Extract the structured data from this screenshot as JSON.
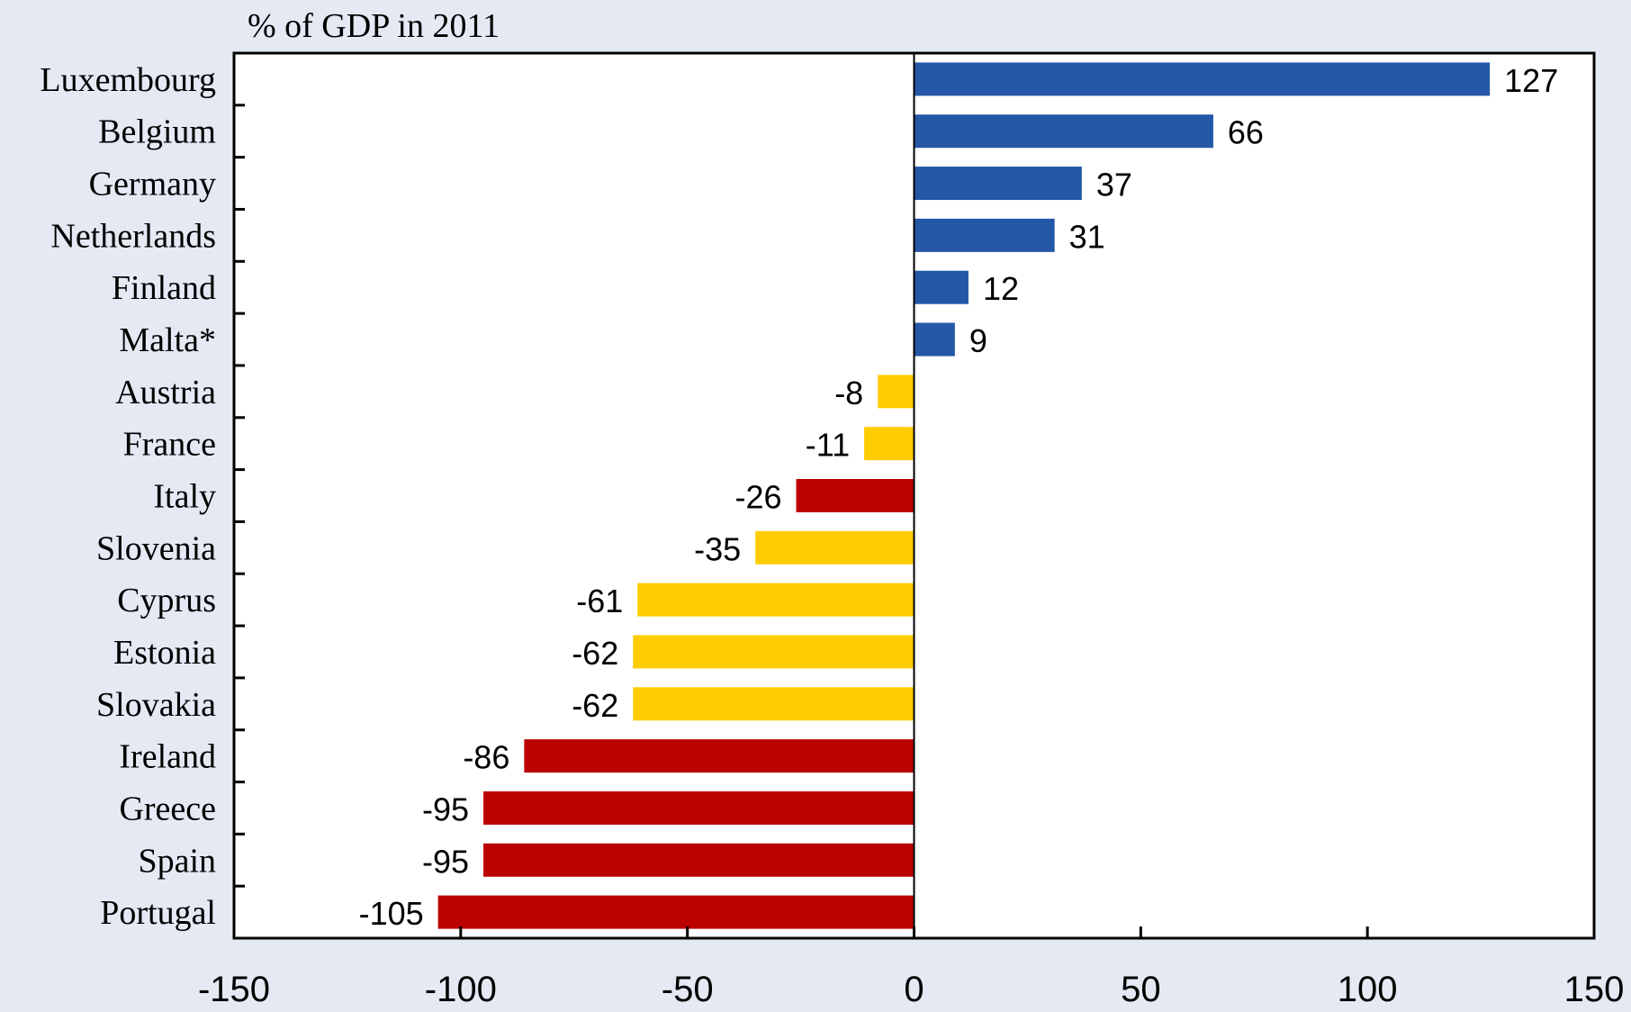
{
  "chart_data": {
    "type": "bar",
    "orientation": "horizontal",
    "title": "% of GDP in 2011",
    "xlabel": "",
    "ylabel": "",
    "xlim": [
      -150,
      150
    ],
    "xticks": [
      -150,
      -100,
      -50,
      0,
      50,
      100,
      150
    ],
    "grid": false,
    "legend": "none",
    "colors": {
      "blue": "#2457A6",
      "yellow": "#FFCC00",
      "red": "#BB0000"
    },
    "bars": [
      {
        "category": "Luxembourg",
        "value": 127,
        "label": "127",
        "color": "blue"
      },
      {
        "category": "Belgium",
        "value": 66,
        "label": "66",
        "color": "blue"
      },
      {
        "category": "Germany",
        "value": 37,
        "label": "37",
        "color": "blue"
      },
      {
        "category": "Netherlands",
        "value": 31,
        "label": "31",
        "color": "blue"
      },
      {
        "category": "Finland",
        "value": 12,
        "label": "12",
        "color": "blue"
      },
      {
        "category": "Malta*",
        "value": 9,
        "label": "9",
        "color": "blue"
      },
      {
        "category": "Austria",
        "value": -8,
        "label": "-8",
        "color": "yellow"
      },
      {
        "category": "France",
        "value": -11,
        "label": "-11",
        "color": "yellow"
      },
      {
        "category": "Italy",
        "value": -26,
        "label": "-26",
        "color": "red"
      },
      {
        "category": "Slovenia",
        "value": -35,
        "label": "-35",
        "color": "yellow"
      },
      {
        "category": "Cyprus",
        "value": -61,
        "label": "-61",
        "color": "yellow"
      },
      {
        "category": "Estonia",
        "value": -62,
        "label": "-62",
        "color": "yellow"
      },
      {
        "category": "Slovakia",
        "value": -62,
        "label": "-62",
        "color": "yellow"
      },
      {
        "category": "Ireland",
        "value": -86,
        "label": "-86",
        "color": "red"
      },
      {
        "category": "Greece",
        "value": -95,
        "label": "-95",
        "color": "red"
      },
      {
        "category": "Spain",
        "value": -95,
        "label": "-95",
        "color": "red"
      },
      {
        "category": "Portugal",
        "value": -105,
        "label": "-105",
        "color": "red"
      }
    ]
  }
}
